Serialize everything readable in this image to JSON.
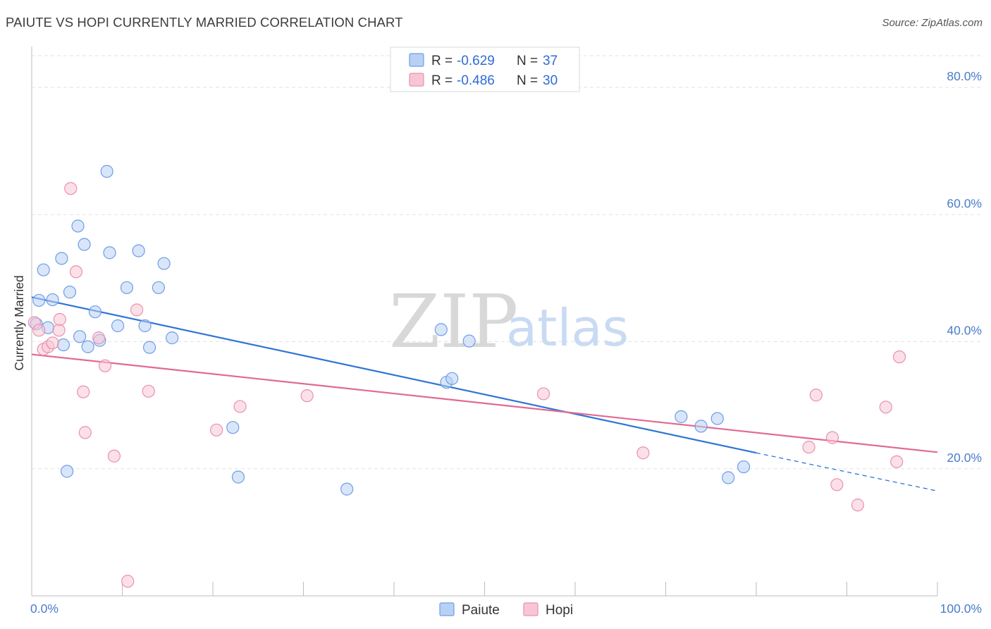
{
  "title": "PAIUTE VS HOPI CURRENTLY MARRIED CORRELATION CHART",
  "source": "Source: ZipAtlas.com",
  "watermark": {
    "zip": "ZIP",
    "atlas": "atlas"
  },
  "chart_data": {
    "type": "scatter",
    "ylabel": "Currently Married",
    "xlim": [
      0,
      100
    ],
    "ylim": [
      0,
      85
    ],
    "x_tick_labels": {
      "left": "0.0%",
      "right": "100.0%"
    },
    "y_ticks": [
      {
        "value": 20,
        "label": "20.0%"
      },
      {
        "value": 40,
        "label": "40.0%"
      },
      {
        "value": 60,
        "label": "60.0%"
      },
      {
        "value": 80,
        "label": "80.0%"
      }
    ],
    "grid": true,
    "legend_position": "top-center",
    "stats": [
      {
        "r_label": "R = ",
        "r": "-0.629",
        "n_label": "N = ",
        "n": "37"
      },
      {
        "r_label": "R = ",
        "r": "-0.486",
        "n_label": "N = ",
        "n": "30"
      }
    ],
    "series": [
      {
        "name": "Paiute",
        "color": "#6d9ee6",
        "fill": "#b9d0f4",
        "trend_color": "#2f74d6",
        "trend": {
          "x0": 0,
          "y0": 47.0,
          "x1": 80,
          "y1": 22.5,
          "dashed_to": 100,
          "dashed_y": 16.5
        },
        "points": [
          [
            0.5,
            42.8
          ],
          [
            0.8,
            46.5
          ],
          [
            1.3,
            51.3
          ],
          [
            1.8,
            42.2
          ],
          [
            2.3,
            46.6
          ],
          [
            3.3,
            53.1
          ],
          [
            3.5,
            39.5
          ],
          [
            4.2,
            47.8
          ],
          [
            5.1,
            58.2
          ],
          [
            5.3,
            40.8
          ],
          [
            5.8,
            55.3
          ],
          [
            6.2,
            39.2
          ],
          [
            7.0,
            44.7
          ],
          [
            7.5,
            40.2
          ],
          [
            8.3,
            66.8
          ],
          [
            8.6,
            54.0
          ],
          [
            9.5,
            42.5
          ],
          [
            10.5,
            48.5
          ],
          [
            11.8,
            54.3
          ],
          [
            12.5,
            42.5
          ],
          [
            13.0,
            39.1
          ],
          [
            14.0,
            48.5
          ],
          [
            14.6,
            52.3
          ],
          [
            15.5,
            40.6
          ],
          [
            3.9,
            19.6
          ],
          [
            22.2,
            26.5
          ],
          [
            22.8,
            18.7
          ],
          [
            34.8,
            16.8
          ],
          [
            45.2,
            41.9
          ],
          [
            45.8,
            33.6
          ],
          [
            46.4,
            34.2
          ],
          [
            48.3,
            40.1
          ],
          [
            71.7,
            28.2
          ],
          [
            73.9,
            26.7
          ],
          [
            75.7,
            27.9
          ],
          [
            76.9,
            18.6
          ],
          [
            78.6,
            20.3
          ]
        ]
      },
      {
        "name": "Hopi",
        "color": "#ea91ad",
        "fill": "#f7c6d5",
        "trend_color": "#e06a93",
        "trend": {
          "x0": 0,
          "y0": 38.0,
          "x1": 100,
          "y1": 22.6
        },
        "points": [
          [
            0.3,
            43.0
          ],
          [
            0.8,
            41.8
          ],
          [
            1.3,
            38.8
          ],
          [
            1.8,
            39.2
          ],
          [
            2.3,
            39.8
          ],
          [
            3.0,
            41.8
          ],
          [
            3.1,
            43.5
          ],
          [
            4.3,
            64.1
          ],
          [
            4.9,
            51.0
          ],
          [
            5.7,
            32.1
          ],
          [
            5.9,
            25.7
          ],
          [
            7.4,
            40.6
          ],
          [
            8.1,
            36.2
          ],
          [
            9.1,
            22.0
          ],
          [
            10.6,
            2.3
          ],
          [
            11.6,
            45.0
          ],
          [
            12.9,
            32.2
          ],
          [
            20.4,
            26.1
          ],
          [
            23.0,
            29.8
          ],
          [
            30.4,
            31.5
          ],
          [
            56.5,
            31.8
          ],
          [
            67.5,
            22.5
          ],
          [
            85.8,
            23.4
          ],
          [
            86.6,
            31.6
          ],
          [
            88.4,
            24.9
          ],
          [
            88.9,
            17.5
          ],
          [
            91.2,
            14.3
          ],
          [
            94.3,
            29.7
          ],
          [
            95.5,
            21.1
          ],
          [
            95.8,
            37.6
          ]
        ]
      }
    ]
  }
}
